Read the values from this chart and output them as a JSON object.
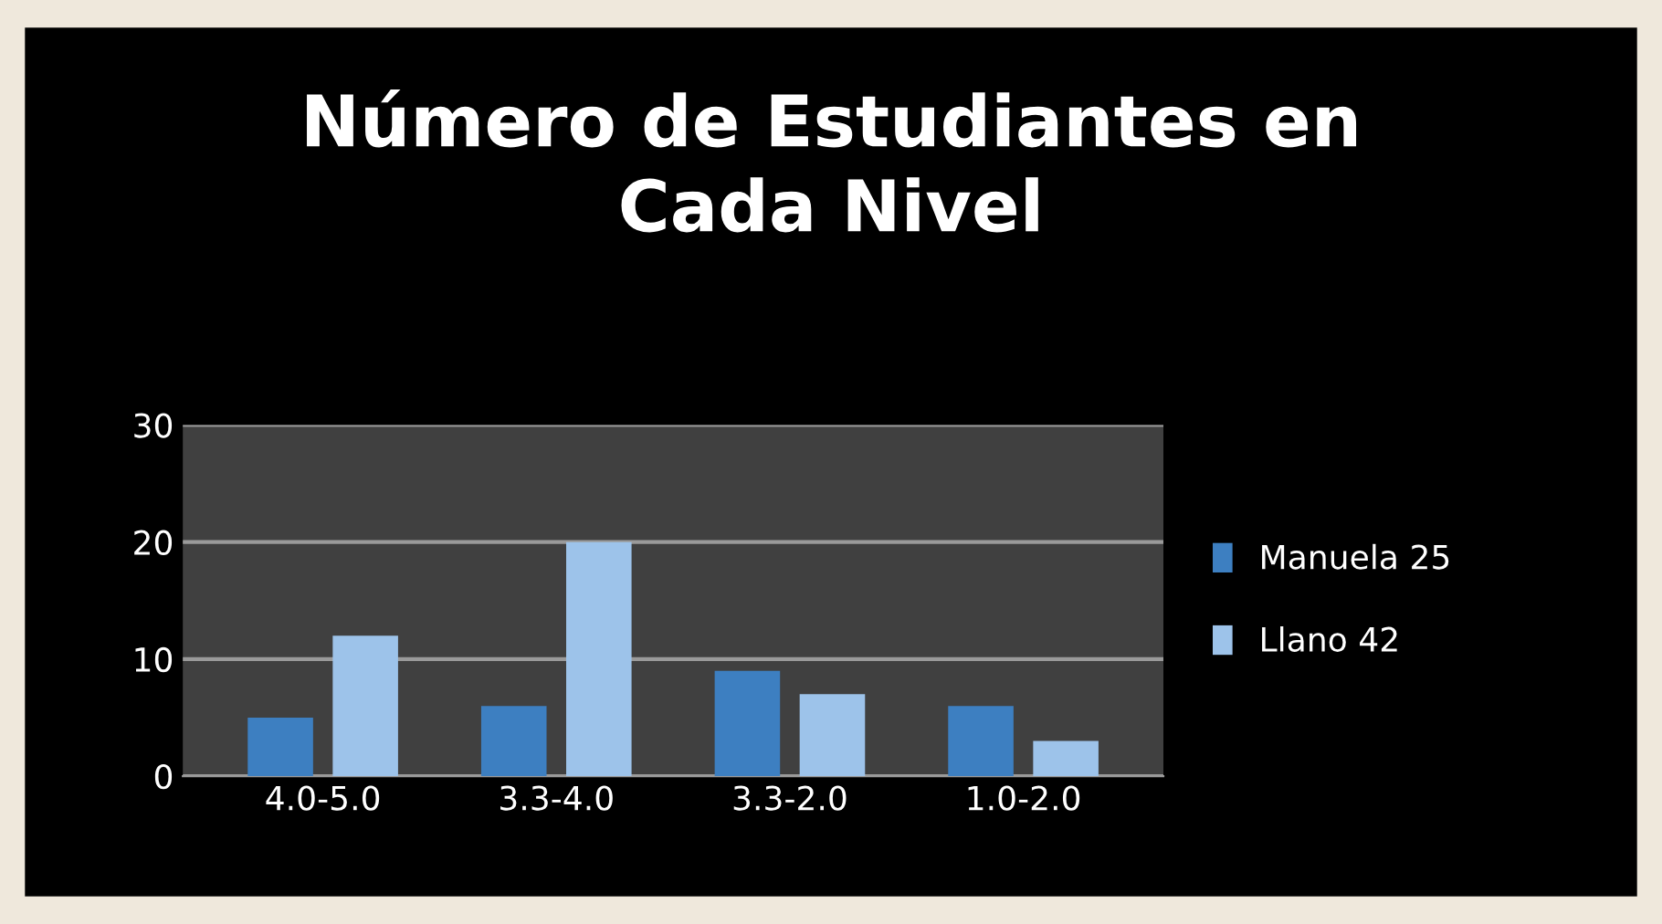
{
  "chart_data": {
    "type": "bar",
    "title": "Número de Estudiantes en\nCada Nivel",
    "categories": [
      "4.0-5.0",
      "3.3-4.0",
      "3.3-2.0",
      "1.0-2.0"
    ],
    "series": [
      {
        "name": "Manuela 25",
        "color": "#3d7fc1",
        "values": [
          5,
          6,
          9,
          6
        ]
      },
      {
        "name": "Llano 42",
        "color": "#9dc3ea",
        "values": [
          12,
          20,
          7,
          3
        ]
      }
    ],
    "ylim": [
      0,
      30
    ],
    "yticks": [
      0,
      10,
      20,
      30
    ],
    "grid": "y",
    "legend": "right"
  }
}
